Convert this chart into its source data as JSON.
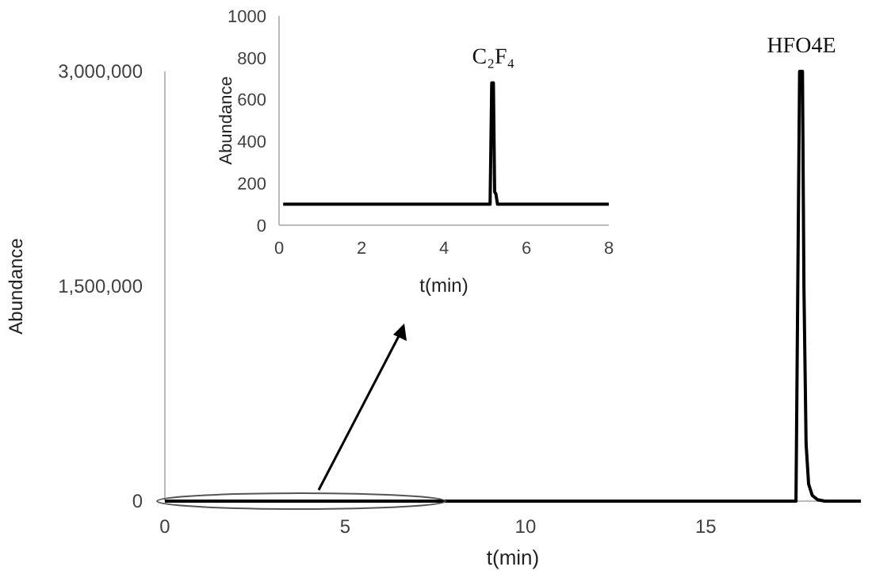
{
  "chart_data": [
    {
      "type": "line",
      "xlabel": "t(min)",
      "ylabel": "Abundance",
      "xlim": [
        0,
        19.3
      ],
      "ylim": [
        0,
        3000000
      ],
      "xticks": [
        0,
        5,
        10,
        15
      ],
      "yticks": [
        {
          "value": 0,
          "label": "0"
        },
        {
          "value": 1500000,
          "label": "1,500,000"
        },
        {
          "value": 3000000,
          "label": "3,000,000"
        }
      ],
      "grid": false,
      "marker": "none",
      "line_style": "solid",
      "series": [
        {
          "color": "#000000",
          "x": [
            0,
            5,
            10,
            15,
            17.5,
            17.55,
            17.6,
            17.68,
            17.72,
            17.78,
            17.85,
            17.95,
            18.1,
            18.3,
            19.3
          ],
          "values": [
            0,
            0,
            0,
            0,
            0,
            1500000,
            3000000,
            3000000,
            1500000,
            400000,
            120000,
            40000,
            10000,
            0,
            0
          ]
        }
      ],
      "annotations": [
        {
          "text": "HFO4E",
          "x": 17.65,
          "y": 3000000
        }
      ]
    },
    {
      "type": "line",
      "xlabel": "t(min)",
      "ylabel": "Abundance",
      "xlim": [
        0,
        8
      ],
      "ylim": [
        0,
        1000
      ],
      "xticks": [
        0,
        2,
        4,
        6,
        8
      ],
      "yticks": [
        0,
        200,
        400,
        600,
        800,
        1000
      ],
      "grid": false,
      "marker": "none",
      "line_style": "solid",
      "series": [
        {
          "color": "#000000",
          "x": [
            0.1,
            2,
            4,
            5.12,
            5.16,
            5.2,
            5.23,
            5.26,
            5.3,
            6,
            8
          ],
          "values": [
            100,
            100,
            100,
            100,
            680,
            680,
            160,
            150,
            100,
            100,
            100
          ]
        }
      ],
      "annotations": [
        {
          "text": "C₂F₄",
          "x": 5.2,
          "y": 680
        }
      ]
    }
  ]
}
